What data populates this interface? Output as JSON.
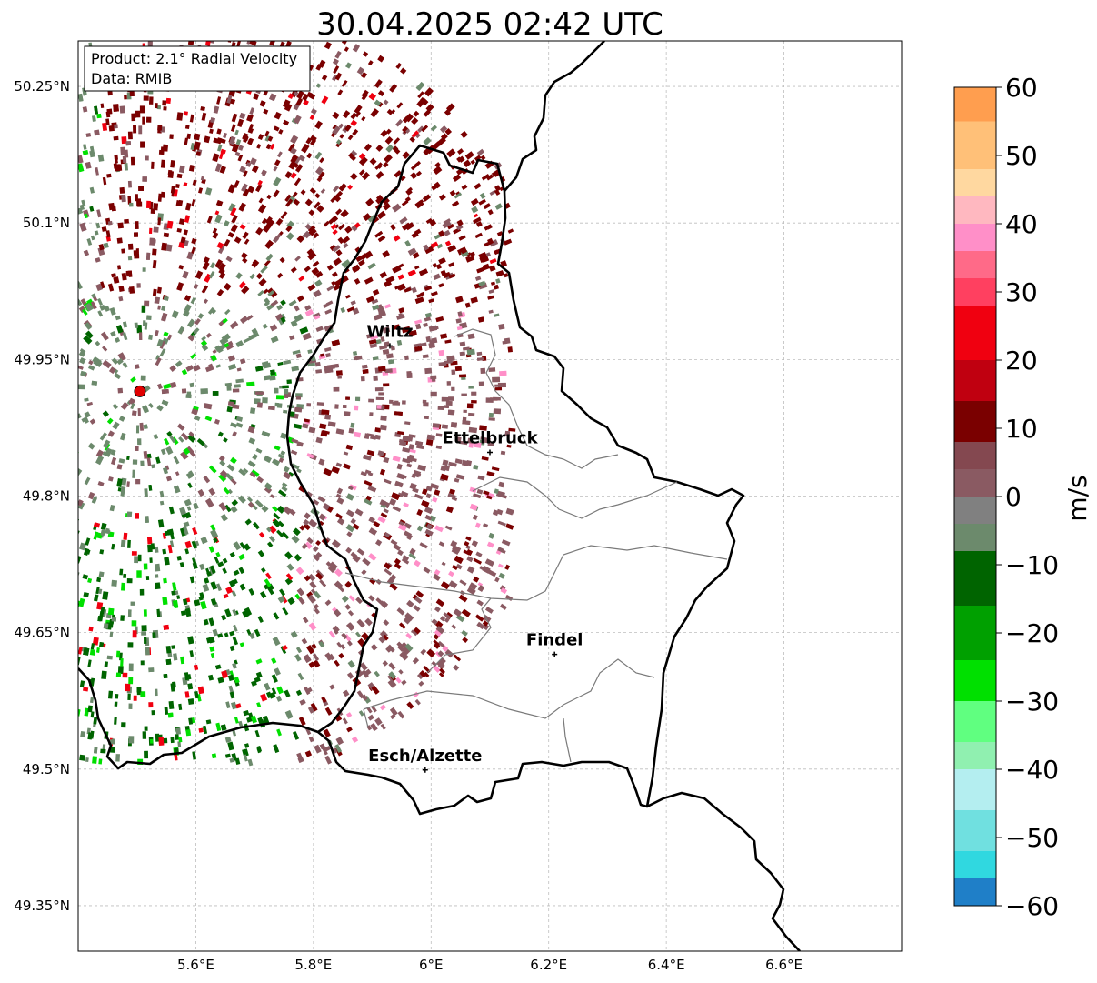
{
  "title": "30.04.2025 02:42 UTC",
  "info_box": {
    "product": "Product: 2.1° Radial Velocity",
    "source": "Data: RMIB"
  },
  "axes": {
    "lon_ticks": [
      "5.6°E",
      "5.8°E",
      "6°E",
      "6.2°E",
      "6.4°E",
      "6.6°E"
    ],
    "lat_ticks": [
      "50.25°N",
      "50.1°N",
      "49.95°N",
      "49.8°N",
      "49.65°N",
      "49.5°N",
      "49.35°N"
    ],
    "lon_range": [
      5.4,
      6.8
    ],
    "lat_range": [
      49.3,
      50.3
    ],
    "grid": true
  },
  "places": [
    {
      "name": "Wiltz",
      "lon": 5.93,
      "lat": 49.965
    },
    {
      "name": "Ettelbruck",
      "lon": 6.1,
      "lat": 49.848
    },
    {
      "name": "Findel",
      "lon": 6.21,
      "lat": 49.626
    },
    {
      "name": "Esch/Alzette",
      "lon": 5.99,
      "lat": 49.499
    }
  ],
  "radar_site": {
    "lon": 5.505,
    "lat": 49.915,
    "color": "#e00000"
  },
  "colorbar": {
    "label": "m/s",
    "min": -60,
    "max": 60,
    "ticks": [
      "60",
      "50",
      "40",
      "30",
      "20",
      "10",
      "0",
      "−10",
      "−20",
      "−30",
      "−40",
      "−50",
      "−60"
    ],
    "colors": {
      "orange": "#ff9e4f",
      "pink": "#ff8fc8",
      "red": "#f00010",
      "darkred": "#7a0000",
      "brown": "#8a5a62",
      "grayishgreen": "#6c8a6c",
      "darkgreen": "#006400",
      "green": "#00e000",
      "lightcyan": "#b4eef0",
      "cyan": "#30d8e0",
      "blue": "#1f7fc8"
    }
  }
}
